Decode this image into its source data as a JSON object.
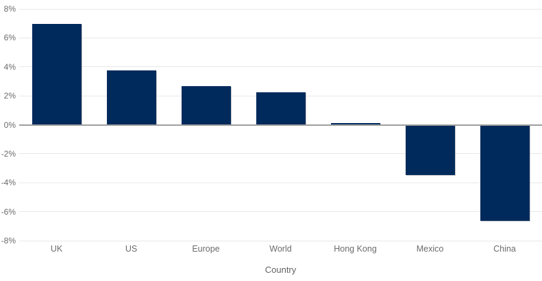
{
  "chart_data": {
    "type": "bar",
    "title": "",
    "categories": [
      "UK",
      "US",
      "Europe",
      "World",
      "Hong Kong",
      "Mexico",
      "China"
    ],
    "values": [
      6.95,
      3.75,
      2.65,
      2.25,
      0.1,
      -3.45,
      -6.65
    ],
    "xlabel": "Country",
    "ylabel": "",
    "ylim": [
      -8,
      8
    ],
    "ytick_step": 2,
    "ytick_labels": [
      "8%",
      "6%",
      "4%",
      "2%",
      "0%",
      "-2%",
      "-4%",
      "-6%",
      "-8%"
    ],
    "grid": true,
    "legend_position": "none",
    "bar_color": "#002a5c"
  },
  "colors": {
    "bar": "#002a5c",
    "gridline": "#e8e8e8",
    "zero_line": "#9e9e9e",
    "tick_text": "#6b6b6b",
    "background": "#ffffff"
  }
}
